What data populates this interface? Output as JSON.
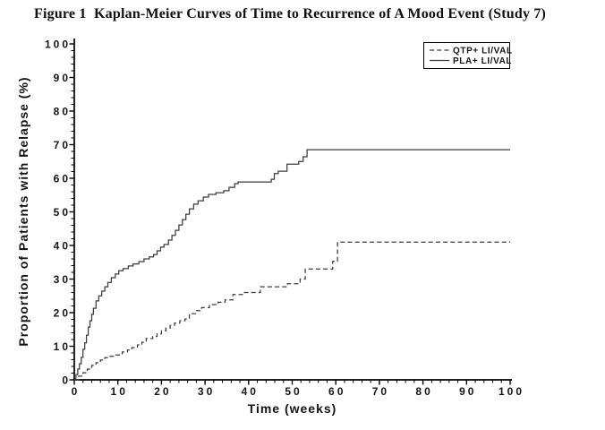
{
  "figure": {
    "title": "Figure 1  Kaplan-Meier Curves of Time to Recurrence of A Mood Event (Study 7)"
  },
  "chart_data": {
    "type": "line",
    "subtype": "kaplan-meier-step",
    "title": "Figure 1  Kaplan-Meier Curves of Time to Recurrence of A Mood Event (Study 7)",
    "xlabel": "Time (weeks)",
    "ylabel": "Proportion of Patients with Relapse (%)",
    "xlim": [
      0,
      100
    ],
    "ylim": [
      0,
      100
    ],
    "x_major_ticks": [
      0,
      10,
      20,
      30,
      40,
      50,
      60,
      70,
      80,
      90,
      100
    ],
    "y_major_ticks": [
      0,
      10,
      20,
      30,
      40,
      50,
      60,
      70,
      80,
      90,
      100
    ],
    "x_minor_interval": 2,
    "y_minor_interval": 2,
    "grid": false,
    "legend": {
      "position": "top-right",
      "border": true,
      "entries": [
        {
          "label": "QTP+ LI/VAL",
          "line": "dashed"
        },
        {
          "label": "PLA+ LI/VAL",
          "line": "solid"
        }
      ]
    },
    "colors": {
      "curve": "#3c3c3c",
      "axis": "#000000",
      "background": "#ffffff"
    },
    "series": [
      {
        "name": "QTP+ LI/VAL",
        "style": "dashed",
        "points": [
          [
            0,
            0
          ],
          [
            1,
            1.1
          ],
          [
            2,
            2.1
          ],
          [
            3,
            3.2
          ],
          [
            4,
            4.3
          ],
          [
            5,
            5.1
          ],
          [
            6,
            5.9
          ],
          [
            7,
            6.6
          ],
          [
            8,
            7.0
          ],
          [
            9.5,
            7.4
          ],
          [
            11,
            8.3
          ],
          [
            12.2,
            8.9
          ],
          [
            13.2,
            9.6
          ],
          [
            14.5,
            10.4
          ],
          [
            15.5,
            11.2
          ],
          [
            16.5,
            12.3
          ],
          [
            18,
            12.9
          ],
          [
            19,
            13.7
          ],
          [
            20,
            14.6
          ],
          [
            21,
            15.4
          ],
          [
            22,
            16.2
          ],
          [
            23,
            16.9
          ],
          [
            24.2,
            17.6
          ],
          [
            25.4,
            18.1
          ],
          [
            26.4,
            19.7
          ],
          [
            28,
            20.6
          ],
          [
            29.2,
            21.5
          ],
          [
            31,
            22.4
          ],
          [
            33,
            23.1
          ],
          [
            34.6,
            23.8
          ],
          [
            36.4,
            25.4
          ],
          [
            38.6,
            26.0
          ],
          [
            42.7,
            27.7
          ],
          [
            48.9,
            28.6
          ],
          [
            51.8,
            30.0
          ],
          [
            53,
            33.0
          ],
          [
            59.3,
            35.3
          ],
          [
            60.4,
            41.0
          ],
          [
            100,
            41.0
          ]
        ]
      },
      {
        "name": "PLA+ LI/VAL",
        "style": "solid",
        "points": [
          [
            0,
            0
          ],
          [
            0.4,
            1.6
          ],
          [
            0.8,
            3.2
          ],
          [
            1.2,
            4.8
          ],
          [
            1.6,
            6.7
          ],
          [
            2,
            9.1
          ],
          [
            2.4,
            11.0
          ],
          [
            2.8,
            13.3
          ],
          [
            3.2,
            15.7
          ],
          [
            3.6,
            17.6
          ],
          [
            4,
            19.5
          ],
          [
            4.4,
            21.3
          ],
          [
            5,
            23.5
          ],
          [
            5.6,
            25.0
          ],
          [
            6.3,
            26.4
          ],
          [
            7,
            27.7
          ],
          [
            7.7,
            29.0
          ],
          [
            8.5,
            30.4
          ],
          [
            9.4,
            31.5
          ],
          [
            10.2,
            32.5
          ],
          [
            11.2,
            33.1
          ],
          [
            12.4,
            33.9
          ],
          [
            13.5,
            34.5
          ],
          [
            14.8,
            35.2
          ],
          [
            16,
            36.0
          ],
          [
            17.2,
            36.6
          ],
          [
            18.2,
            37.3
          ],
          [
            19,
            38.4
          ],
          [
            19.8,
            39.5
          ],
          [
            20.6,
            40.3
          ],
          [
            21.6,
            41.6
          ],
          [
            22.4,
            43.0
          ],
          [
            23.2,
            44.5
          ],
          [
            24,
            46.1
          ],
          [
            24.8,
            47.7
          ],
          [
            25.6,
            49.3
          ],
          [
            26.4,
            50.9
          ],
          [
            27.4,
            52.3
          ],
          [
            28.4,
            53.3
          ],
          [
            29.6,
            54.4
          ],
          [
            30.8,
            55.2
          ],
          [
            32.5,
            55.7
          ],
          [
            34.3,
            56.3
          ],
          [
            35.5,
            57.3
          ],
          [
            36.8,
            58.4
          ],
          [
            37.6,
            58.9
          ],
          [
            45.2,
            59.7
          ],
          [
            45.9,
            61.4
          ],
          [
            46.8,
            62.1
          ],
          [
            48.8,
            64.2
          ],
          [
            51.5,
            65.0
          ],
          [
            52.5,
            66.4
          ],
          [
            53.4,
            68.5
          ],
          [
            100,
            68.5
          ]
        ]
      }
    ]
  }
}
